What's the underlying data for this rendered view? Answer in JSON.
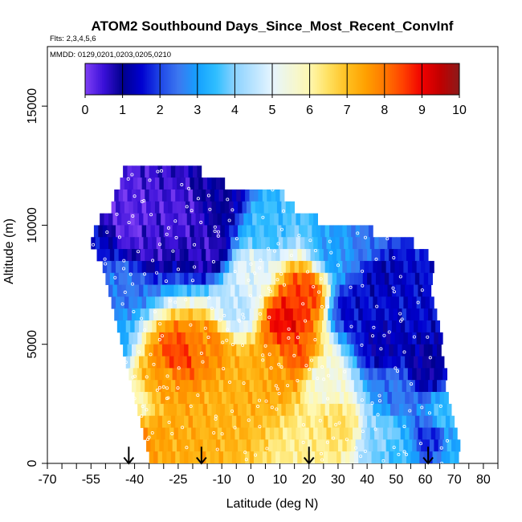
{
  "chart_data": {
    "type": "heatmap",
    "title": "ATOM2 Southbound Days_Since_Most_Recent_ConvInf",
    "flights_label": "Flts: 2,3,4,5,6",
    "dates_label": "MMDD: 0129,0201,0203,0205,0210",
    "xlabel": "Latitude (deg N)",
    "ylabel": "Altitude (m)",
    "xlim": [
      -70,
      85
    ],
    "ylim": [
      0,
      17500
    ],
    "xticks": [
      -70,
      -55,
      -40,
      -25,
      -10,
      0,
      10,
      20,
      30,
      40,
      50,
      60,
      70,
      80
    ],
    "xtick_labels": [
      "-70",
      "-55",
      "-40",
      "-25",
      "-10",
      "0",
      "10",
      "20",
      "30",
      "40",
      "50",
      "60",
      "70",
      "80"
    ],
    "xminor_ticks": [
      -65,
      -60,
      -50,
      -45,
      -35,
      -30,
      -20,
      -15,
      -5,
      5,
      15,
      25,
      35,
      45,
      55,
      65,
      75,
      85
    ],
    "yticks": [
      0,
      5000,
      10000,
      15000
    ],
    "ytick_labels": [
      "0",
      "5000",
      "10000",
      "15000"
    ],
    "colorbar": {
      "min": 0,
      "max": 10,
      "ticks": [
        0,
        1,
        2,
        3,
        4,
        5,
        6,
        7,
        8,
        9,
        10
      ],
      "tick_labels": [
        "0",
        "1",
        "2",
        "3",
        "4",
        "5",
        "6",
        "7",
        "8",
        "9",
        "10"
      ],
      "stops": [
        {
          "v": 0,
          "color": "#7F3FF5"
        },
        {
          "v": 0.5,
          "color": "#3A10D8"
        },
        {
          "v": 1,
          "color": "#00008C"
        },
        {
          "v": 1.5,
          "color": "#0000D0"
        },
        {
          "v": 2,
          "color": "#1E46E6"
        },
        {
          "v": 2.5,
          "color": "#3C78F0"
        },
        {
          "v": 3,
          "color": "#14A0FF"
        },
        {
          "v": 3.5,
          "color": "#2FBEFF"
        },
        {
          "v": 4,
          "color": "#8CD2FF"
        },
        {
          "v": 5,
          "color": "#E6F5FF"
        },
        {
          "v": 6,
          "color": "#FFF8B0"
        },
        {
          "v": 6.5,
          "color": "#FFE060"
        },
        {
          "v": 7,
          "color": "#FFC020"
        },
        {
          "v": 7.5,
          "color": "#FFA000"
        },
        {
          "v": 8,
          "color": "#FF7800"
        },
        {
          "v": 8.5,
          "color": "#FF4000"
        },
        {
          "v": 9,
          "color": "#F00000"
        },
        {
          "v": 9.5,
          "color": "#C00000"
        },
        {
          "v": 10,
          "color": "#8B1A1A"
        }
      ]
    },
    "altitude_bands": [
      {
        "alt": 12000,
        "lat_start": -44,
        "lat_end": -17
      },
      {
        "alt": 11500,
        "lat_start": -45,
        "lat_end": -9
      },
      {
        "alt": 11000,
        "lat_start": -47,
        "lat_end": 11
      },
      {
        "alt": 10500,
        "lat_start": -48,
        "lat_end": 14
      },
      {
        "alt": 10000,
        "lat_start": -52,
        "lat_end": 22
      },
      {
        "alt": 9500,
        "lat_start": -54,
        "lat_end": 41
      },
      {
        "alt": 9000,
        "lat_start": -55,
        "lat_end": 55
      },
      {
        "alt": 8500,
        "lat_start": -53,
        "lat_end": 61
      },
      {
        "alt": 8000,
        "lat_start": -51,
        "lat_end": 62
      },
      {
        "alt": 7500,
        "lat_start": -50,
        "lat_end": 62
      },
      {
        "alt": 7000,
        "lat_start": -49,
        "lat_end": 62
      },
      {
        "alt": 6500,
        "lat_start": -48,
        "lat_end": 62
      },
      {
        "alt": 6000,
        "lat_start": -47,
        "lat_end": 63
      },
      {
        "alt": 5500,
        "lat_start": -46,
        "lat_end": 64
      },
      {
        "alt": 5000,
        "lat_start": -45,
        "lat_end": 65
      },
      {
        "alt": 4500,
        "lat_start": -44,
        "lat_end": 65
      },
      {
        "alt": 4000,
        "lat_start": -43,
        "lat_end": 66
      },
      {
        "alt": 3500,
        "lat_start": -42,
        "lat_end": 67
      },
      {
        "alt": 3000,
        "lat_start": -41,
        "lat_end": 67
      },
      {
        "alt": 2500,
        "lat_start": -40,
        "lat_end": 68
      },
      {
        "alt": 2000,
        "lat_start": -39,
        "lat_end": 69
      },
      {
        "alt": 1500,
        "lat_start": -38,
        "lat_end": 70
      },
      {
        "alt": 1000,
        "lat_start": -37,
        "lat_end": 70
      },
      {
        "alt": 500,
        "lat_start": -36,
        "lat_end": 71
      },
      {
        "alt": 0,
        "lat_start": -35,
        "lat_end": 71
      }
    ],
    "value_field": [
      {
        "lat": -55,
        "alt": 9000,
        "value": 1.5
      },
      {
        "lat": -45,
        "alt": 11000,
        "value": 0.3
      },
      {
        "lat": -40,
        "alt": 10000,
        "value": 0.2
      },
      {
        "lat": -35,
        "alt": 9500,
        "value": 0.5
      },
      {
        "lat": -25,
        "alt": 10500,
        "value": 0.4
      },
      {
        "lat": -15,
        "alt": 9000,
        "value": 0.6
      },
      {
        "lat": -10,
        "alt": 11000,
        "value": 1.0
      },
      {
        "lat": -45,
        "alt": 7500,
        "value": 2.5
      },
      {
        "lat": -50,
        "alt": 5000,
        "value": 3.0
      },
      {
        "lat": -40,
        "alt": 2500,
        "value": 6.0
      },
      {
        "lat": -35,
        "alt": 1000,
        "value": 7.5
      },
      {
        "lat": -25,
        "alt": 500,
        "value": 7.3
      },
      {
        "lat": -10,
        "alt": 2000,
        "value": 7.2
      },
      {
        "lat": -25,
        "alt": 4500,
        "value": 8.5
      },
      {
        "lat": -15,
        "alt": 5000,
        "value": 7.8
      },
      {
        "lat": 0,
        "alt": 3500,
        "value": 7.2
      },
      {
        "lat": 10,
        "alt": 4000,
        "value": 7.5
      },
      {
        "lat": 12,
        "alt": 6000,
        "value": 9.0
      },
      {
        "lat": 18,
        "alt": 7000,
        "value": 8.5
      },
      {
        "lat": 15,
        "alt": 4500,
        "value": 8.3
      },
      {
        "lat": 0,
        "alt": 8000,
        "value": 5.0
      },
      {
        "lat": -5,
        "alt": 6500,
        "value": 4.5
      },
      {
        "lat": 25,
        "alt": 3500,
        "value": 5.5
      },
      {
        "lat": 30,
        "alt": 1500,
        "value": 6.5
      },
      {
        "lat": 45,
        "alt": 1000,
        "value": 4.0
      },
      {
        "lat": 35,
        "alt": 6500,
        "value": 1.5
      },
      {
        "lat": 45,
        "alt": 5000,
        "value": 1.2
      },
      {
        "lat": 45,
        "alt": 8000,
        "value": 1.3
      },
      {
        "lat": 50,
        "alt": 3000,
        "value": 2.5
      },
      {
        "lat": 55,
        "alt": 7000,
        "value": 1.5
      },
      {
        "lat": 60,
        "alt": 4000,
        "value": 1.0
      },
      {
        "lat": 62,
        "alt": 1000,
        "value": 1.8
      },
      {
        "lat": 67,
        "alt": 2000,
        "value": 3.5
      },
      {
        "lat": 5,
        "alt": 10000,
        "value": 3.5
      },
      {
        "lat": 30,
        "alt": 9000,
        "value": 3.0
      },
      {
        "lat": 40,
        "alt": 9200,
        "value": 2.5
      },
      {
        "lat": -30,
        "alt": 3500,
        "value": 7.5
      },
      {
        "lat": 20,
        "alt": 500,
        "value": 6.2
      },
      {
        "lat": 50,
        "alt": 500,
        "value": 3.5
      },
      {
        "lat": 70,
        "alt": 500,
        "value": 3.2
      }
    ],
    "arrows_latitude": [
      -42,
      -17,
      20,
      61
    ]
  }
}
